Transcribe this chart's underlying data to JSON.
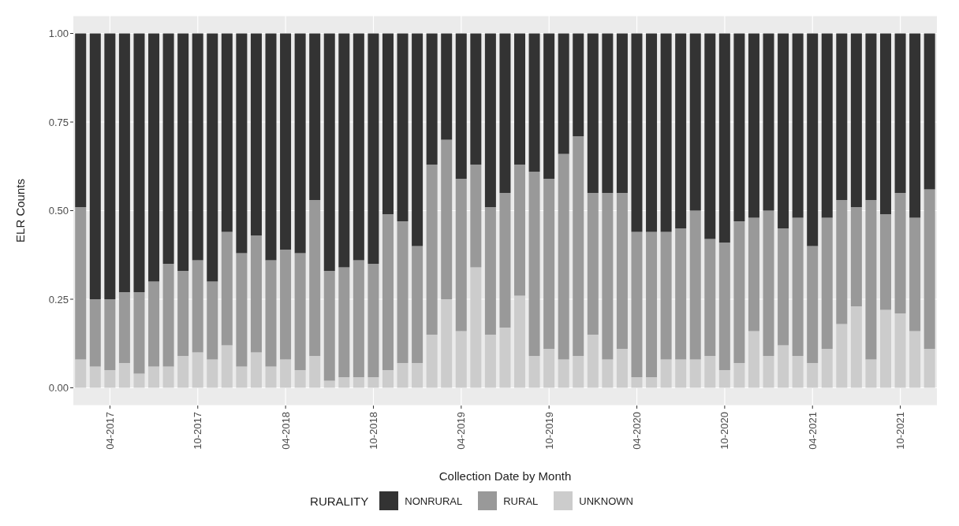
{
  "chart_data": {
    "type": "bar",
    "stacked": true,
    "xlabel": "Collection Date by Month",
    "ylabel": "ELR Counts",
    "legend_title": "RURALITY",
    "legend": "bottom",
    "grid": true,
    "categories": [
      null,
      null,
      "04-2017",
      null,
      null,
      null,
      null,
      null,
      "10-2017",
      null,
      null,
      null,
      null,
      null,
      "04-2018",
      null,
      null,
      null,
      null,
      null,
      "10-2018",
      null,
      null,
      null,
      null,
      null,
      "04-2019",
      null,
      null,
      null,
      null,
      null,
      "10-2019",
      null,
      null,
      null,
      null,
      null,
      "04-2020",
      null,
      null,
      null,
      null,
      null,
      "10-2020",
      null,
      null,
      null,
      null,
      null,
      "04-2021",
      null,
      null,
      null,
      null,
      null,
      "10-2021",
      null,
      null
    ],
    "ylim": [
      -0.05,
      1.05
    ],
    "yticks": [
      {
        "value": 0,
        "label": "0.00"
      },
      {
        "value": 0.25,
        "label": "0.25"
      },
      {
        "value": 0.5,
        "label": "0.50"
      },
      {
        "value": 0.75,
        "label": "0.75"
      },
      {
        "value": 1,
        "label": "1.00"
      }
    ],
    "series": [
      {
        "name": "UNKNOWN",
        "color": "#cccccc",
        "values": [
          0.08,
          0.06,
          0.05,
          0.07,
          0.04,
          0.06,
          0.06,
          0.09,
          0.1,
          0.08,
          0.12,
          0.06,
          0.1,
          0.06,
          0.08,
          0.05,
          0.09,
          0.02,
          0.03,
          0.03,
          0.03,
          0.05,
          0.07,
          0.07,
          0.15,
          0.25,
          0.16,
          0.34,
          0.15,
          0.17,
          0.26,
          0.09,
          0.11,
          0.08,
          0.09,
          0.15,
          0.08,
          0.11,
          0.03,
          0.03,
          0.08,
          0.08,
          0.08,
          0.09,
          0.05,
          0.07,
          0.16,
          0.09,
          0.12,
          0.09,
          0.07,
          0.11,
          0.18,
          0.23,
          0.08,
          0.22,
          0.21,
          0.16,
          0.11
        ]
      },
      {
        "name": "RURAL",
        "color": "#999999",
        "values": [
          0.43,
          0.19,
          0.2,
          0.2,
          0.23,
          0.24,
          0.29,
          0.24,
          0.26,
          0.22,
          0.32,
          0.32,
          0.33,
          0.3,
          0.31,
          0.33,
          0.44,
          0.31,
          0.31,
          0.33,
          0.32,
          0.44,
          0.4,
          0.33,
          0.48,
          0.45,
          0.43,
          0.29,
          0.36,
          0.38,
          0.37,
          0.52,
          0.48,
          0.58,
          0.62,
          0.4,
          0.47,
          0.44,
          0.41,
          0.41,
          0.36,
          0.37,
          0.42,
          0.33,
          0.36,
          0.4,
          0.32,
          0.41,
          0.33,
          0.39,
          0.33,
          0.37,
          0.35,
          0.28,
          0.45,
          0.27,
          0.34,
          0.32,
          0.45
        ]
      },
      {
        "name": "NONRURAL",
        "color": "#333333",
        "values": [
          0.49,
          0.75,
          0.75,
          0.73,
          0.73,
          0.7,
          0.65,
          0.67,
          0.64,
          0.7,
          0.56,
          0.62,
          0.57,
          0.64,
          0.61,
          0.62,
          0.47,
          0.67,
          0.66,
          0.64,
          0.65,
          0.51,
          0.53,
          0.6,
          0.37,
          0.3,
          0.41,
          0.37,
          0.49,
          0.45,
          0.37,
          0.39,
          0.41,
          0.34,
          0.29,
          0.45,
          0.45,
          0.45,
          0.56,
          0.56,
          0.56,
          0.55,
          0.5,
          0.58,
          0.59,
          0.53,
          0.52,
          0.5,
          0.55,
          0.52,
          0.6,
          0.52,
          0.47,
          0.49,
          0.47,
          0.51,
          0.45,
          0.52,
          0.44
        ]
      }
    ]
  }
}
